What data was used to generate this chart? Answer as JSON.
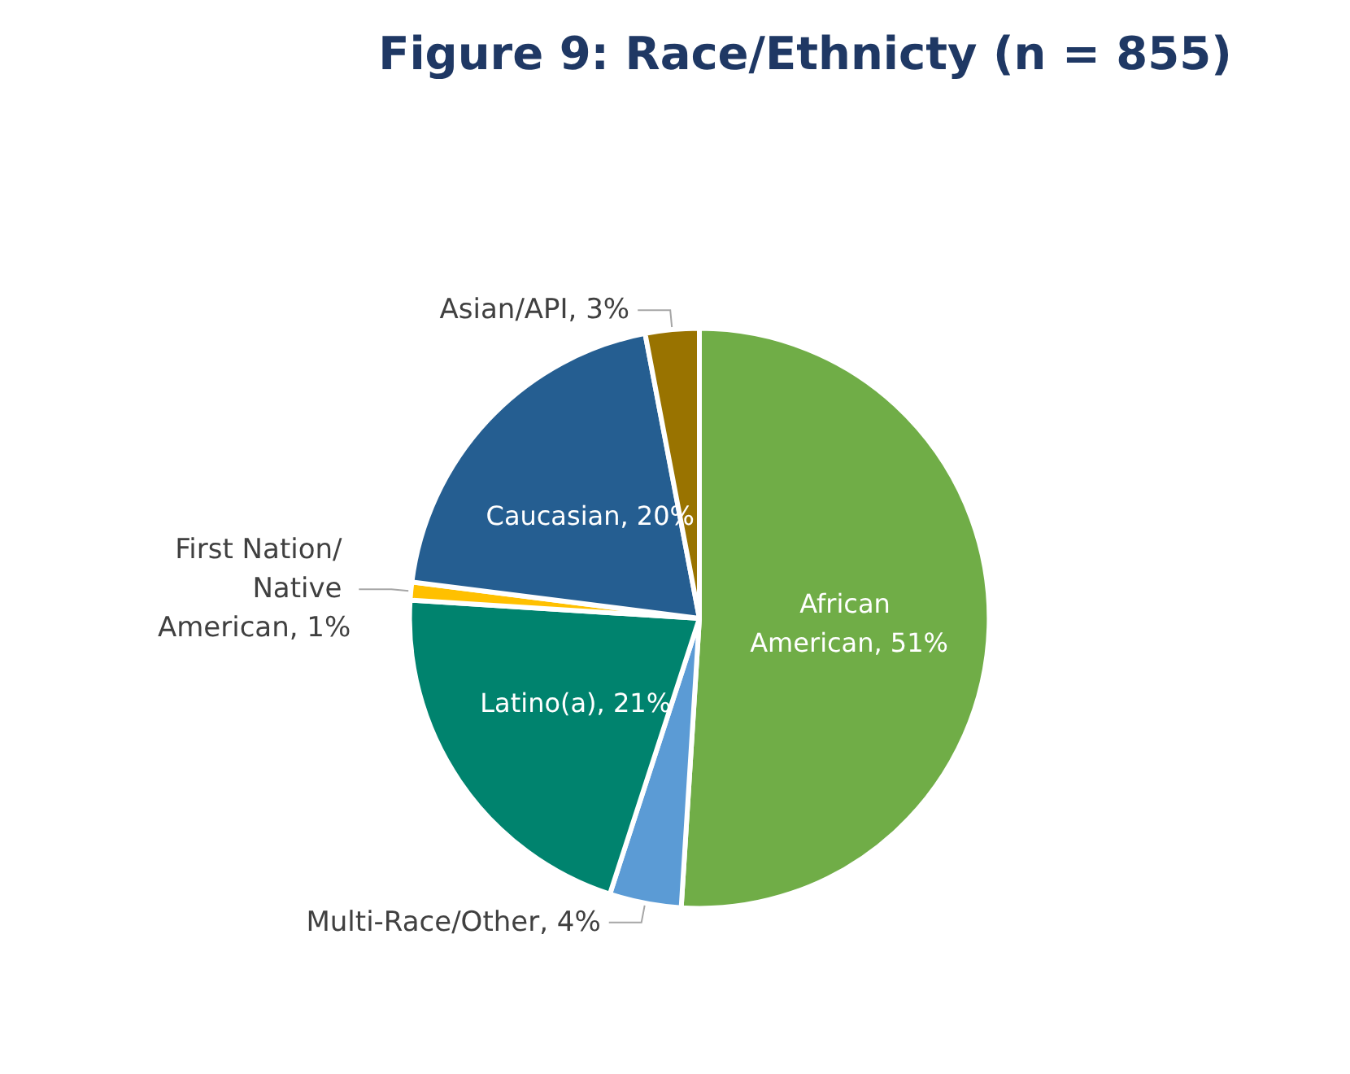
{
  "chart_data": {
    "type": "pie",
    "title": "Figure 9: Race/Ethnicty (n = 855)",
    "categories": [
      "African American",
      "Multi-Race/Other",
      "Latino(a)",
      "First Nation/ Native American",
      "Caucasian",
      "Asian/API"
    ],
    "values": [
      51,
      4,
      21,
      1,
      20,
      3
    ],
    "value_labels": [
      "51%",
      "4%",
      "21%",
      "1%",
      "20%",
      "3%"
    ],
    "colors": [
      "#70ad47",
      "#5b9bd5",
      "#00836e",
      "#ffc000",
      "#255e91",
      "#997300"
    ],
    "legend": false
  }
}
